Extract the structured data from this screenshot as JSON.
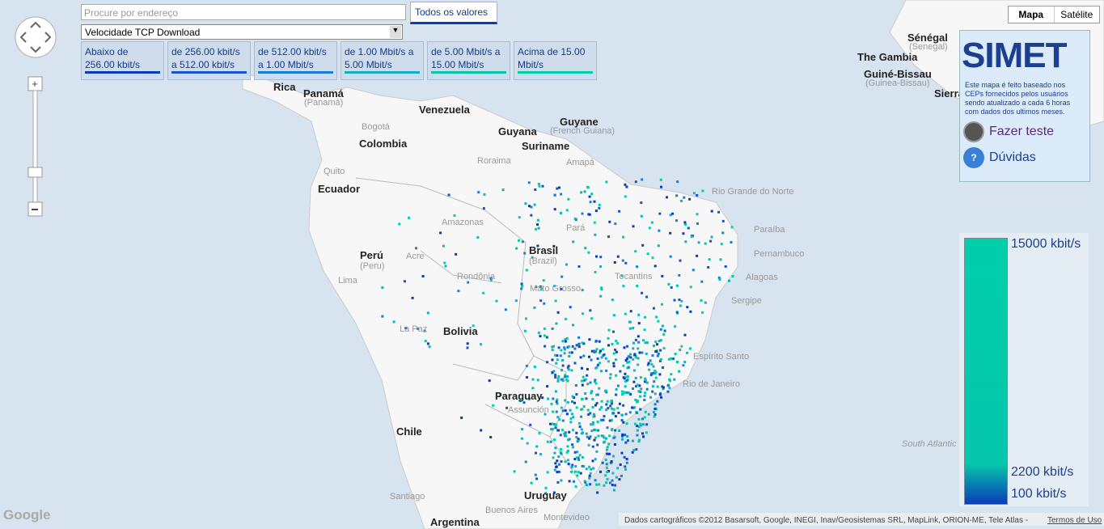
{
  "search": {
    "placeholder": "Procure por endereço",
    "all_values": "Todos os valores"
  },
  "metric_select": "Velocidade TCP Download",
  "filters": [
    {
      "label": "Abaixo de 256.00 kbit/s",
      "color": "#0a3cb8"
    },
    {
      "label": "de 256.00 kbit/s a 512.00 kbit/s",
      "color": "#1656c8"
    },
    {
      "label": "de 512.00 kbit/s a 1.00 Mbit/s",
      "color": "#1a7fd2"
    },
    {
      "label": "de 1.00 Mbit/s a 5.00 Mbit/s",
      "color": "#14adc4"
    },
    {
      "label": "de 5.00 Mbit/s a 15.00 Mbit/s",
      "color": "#05c6ab"
    },
    {
      "label": "Acima de 15.00 Mbit/s",
      "color": "#00cfaa"
    }
  ],
  "map_type": [
    "Mapa",
    "Satélite"
  ],
  "panel": {
    "logo": "SIMET",
    "description": "Este mapa é feito baseado nos CEPs fornecidos pelos usuários sendo atualizado a cada 6 horas com dados dos ultimos meses.",
    "actions": [
      "Fazer teste",
      "Dúvidas"
    ]
  },
  "scale": {
    "labels": [
      "15000 kbit/s",
      "2200 kbit/s",
      "100 kbit/s"
    ]
  },
  "map_labels": [
    "Venezuela",
    "Colombia",
    "Guyana",
    "Suriname",
    "Guyane",
    "(French Guiana)",
    "Ecuador",
    "Perú",
    "(Peru)",
    "Brasil",
    "(Brazil)",
    "Bolivia",
    "Paraguay",
    "Chile",
    "Uruguay",
    "Argentina",
    "Panamá",
    "(Panamá)",
    "Rica",
    "Bogotá",
    "Quito",
    "Lima",
    "La Paz",
    "Amazonas",
    "Pará",
    "Acre",
    "Rondônia",
    "Tocantins",
    "Mato Grosso",
    "Assunción",
    "Montevideo",
    "Buenos Aires",
    "Santiago",
    "Rio Grande do Norte",
    "Paraíba",
    "Pernambuco",
    "Alagoas",
    "Sergipe",
    "Espírito Santo",
    "Rio de Janeiro",
    "Sénégal",
    "(Senegal)",
    "The Gambia",
    "Guiné-Bissau",
    "(Guinea-Bissau)",
    "Sierra Leone",
    "South Atlantic Ocean",
    "Amapá",
    "Roraima"
  ],
  "attribution": "Dados cartográficos ©2012 Basarsoft, Google, INEGI, Inav/Geosistemas SRL, MapLink, ORION-ME, Tele Atlas -",
  "terms": "Termos de Uso",
  "google": "Google"
}
